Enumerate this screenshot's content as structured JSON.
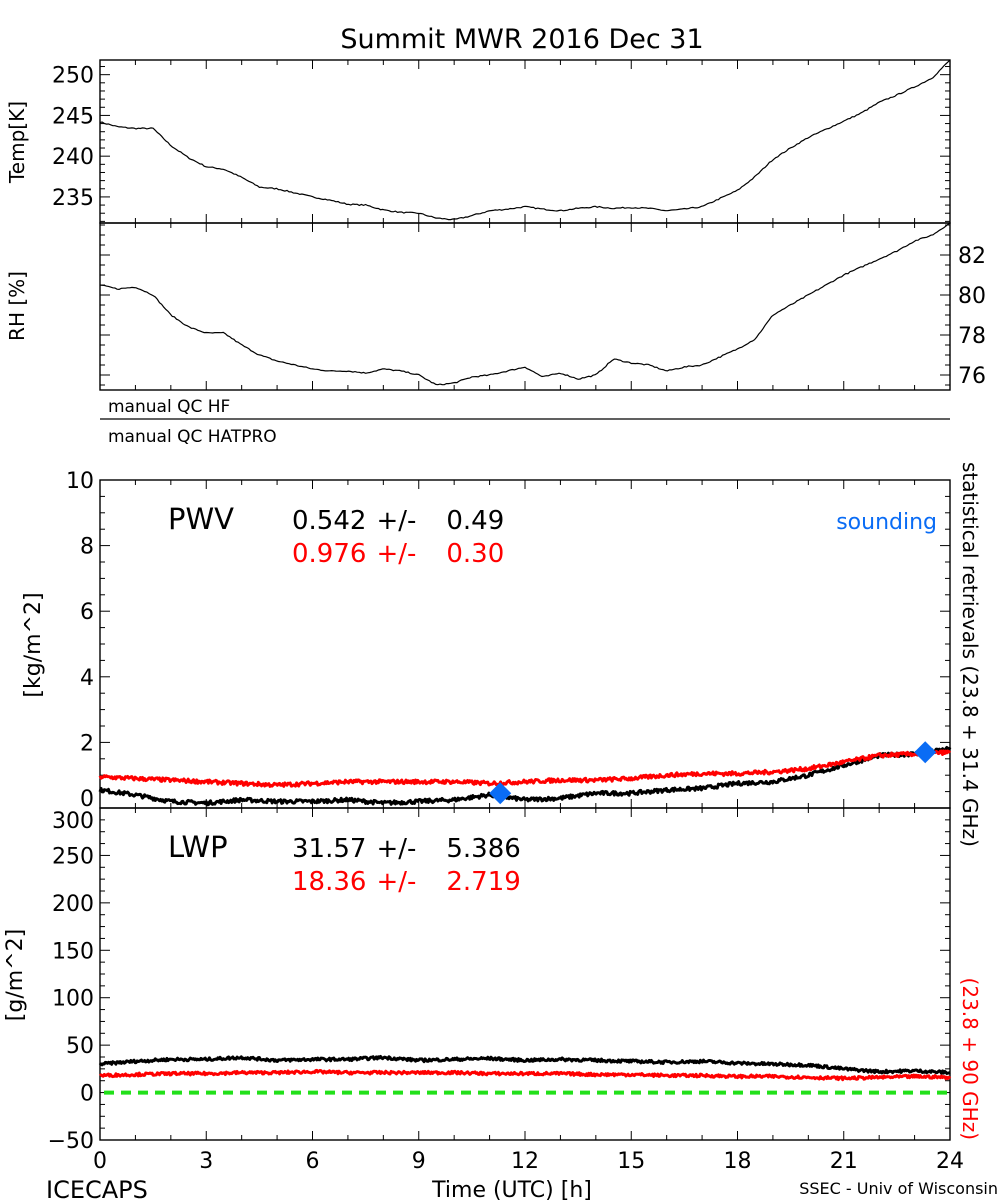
{
  "title": "Summit MWR 2016 Dec 31",
  "footer": {
    "left": "ICECAPS",
    "center": "Time (UTC) [h]",
    "right": "SSEC - Univ of Wisconsin"
  },
  "colors": {
    "primary": "#000000",
    "secondary": "#ff0000",
    "sounding": "#0a6cf5",
    "zero_line": "#22e01a"
  },
  "qc": {
    "hf_label": "manual QC HF",
    "hatpro_label": "manual QC HATPRO"
  },
  "right_label": {
    "black_part": "statistical retrievals (23.8 + 31.4 GHz)",
    "red_part": "(23.8 + 90 GHz)"
  },
  "chart_data": [
    {
      "name": "temperature",
      "type": "line",
      "ylabel": "Temp[K]",
      "ylim": [
        231.8,
        251.8
      ],
      "yticks": [
        "235",
        "240",
        "245",
        "250"
      ],
      "ytick_values": [
        235,
        240,
        245,
        250
      ],
      "xlim": [
        0,
        24
      ],
      "x": [
        0,
        0.5,
        1,
        1.5,
        2,
        2.5,
        3,
        3.5,
        4,
        4.5,
        5,
        5.5,
        6,
        6.5,
        7,
        7.5,
        8,
        8.5,
        9,
        9.5,
        10,
        10.5,
        11,
        11.5,
        12,
        12.5,
        13,
        13.5,
        14,
        14.5,
        15,
        15.5,
        16,
        16.5,
        17,
        17.5,
        18,
        18.5,
        19,
        19.5,
        20,
        20.5,
        21,
        21.5,
        22,
        22.5,
        23,
        23.5,
        24
      ],
      "y": [
        244.2,
        243.6,
        243.4,
        243.4,
        241.3,
        239.8,
        238.7,
        238.4,
        237.4,
        236.2,
        236.0,
        235.5,
        235.0,
        234.6,
        234.1,
        234.0,
        233.4,
        233.1,
        233.0,
        232.4,
        232.2,
        232.7,
        233.3,
        233.5,
        233.8,
        233.5,
        233.3,
        233.6,
        233.8,
        233.6,
        233.7,
        233.6,
        233.3,
        233.5,
        233.8,
        234.8,
        235.8,
        237.5,
        239.6,
        241.0,
        242.3,
        243.3,
        244.3,
        245.3,
        246.6,
        247.5,
        248.5,
        249.6,
        251.8
      ]
    },
    {
      "name": "relative_humidity",
      "type": "line",
      "ylabel": "RH [%]",
      "ylim": [
        75.25,
        83.6
      ],
      "yticks": [
        "76",
        "78",
        "80",
        "82"
      ],
      "ytick_values": [
        76,
        78,
        80,
        82
      ],
      "xlim": [
        0,
        24
      ],
      "x": [
        0,
        0.5,
        1,
        1.5,
        2,
        2.5,
        3,
        3.5,
        4,
        4.5,
        5,
        5.5,
        6,
        6.5,
        7,
        7.5,
        8,
        8.5,
        9,
        9.5,
        10,
        10.5,
        11,
        11.5,
        12,
        12.5,
        13,
        13.5,
        14,
        14.5,
        15,
        15.5,
        16,
        16.5,
        17,
        17.5,
        18,
        18.5,
        19,
        19.5,
        20,
        20.5,
        21,
        21.5,
        22,
        22.5,
        23,
        23.5,
        24
      ],
      "y": [
        80.5,
        80.3,
        80.4,
        80.0,
        79.0,
        78.4,
        78.1,
        78.1,
        77.5,
        77.0,
        76.7,
        76.5,
        76.3,
        76.2,
        76.2,
        76.1,
        76.3,
        76.2,
        76.0,
        75.5,
        75.6,
        75.9,
        76.0,
        76.2,
        76.4,
        75.9,
        76.1,
        75.8,
        76.0,
        76.8,
        76.6,
        76.5,
        76.2,
        76.4,
        76.5,
        76.9,
        77.3,
        77.8,
        79.0,
        79.5,
        80.0,
        80.5,
        81.0,
        81.4,
        81.8,
        82.2,
        82.7,
        83.0,
        83.6
      ]
    },
    {
      "name": "pwv",
      "type": "line",
      "ylabel": "[kg/m^2]",
      "panel_label": "PWV",
      "stats": [
        {
          "mean": "0.542",
          "pm": "+/-",
          "std": "0.49",
          "color": "#000000"
        },
        {
          "mean": "0.976",
          "pm": "+/-",
          "std": "0.30",
          "color": "#ff0000"
        }
      ],
      "legend": "sounding",
      "ylim": [
        0,
        10
      ],
      "yticks": [
        "0",
        "2",
        "4",
        "6",
        "8",
        "10"
      ],
      "ytick_values": [
        0,
        2,
        4,
        6,
        8,
        10
      ],
      "xlim": [
        0,
        24
      ],
      "x": [
        0,
        1,
        2,
        3,
        4,
        5,
        6,
        7,
        8,
        9,
        10,
        11,
        12,
        13,
        14,
        15,
        16,
        17,
        18,
        19,
        20,
        21,
        22,
        23,
        24
      ],
      "series": [
        {
          "name": "statistical retrievals (23.8 + 31.4 GHz)",
          "color": "#000000",
          "values": [
            0.55,
            0.4,
            0.2,
            0.15,
            0.25,
            0.2,
            0.2,
            0.25,
            0.15,
            0.2,
            0.25,
            0.4,
            0.25,
            0.3,
            0.45,
            0.45,
            0.55,
            0.6,
            0.75,
            0.8,
            1.0,
            1.3,
            1.6,
            1.65,
            1.8
          ]
        },
        {
          "name": "(23.8 + 90 GHz)",
          "color": "#ff0000",
          "values": [
            0.95,
            0.9,
            0.85,
            0.8,
            0.75,
            0.7,
            0.75,
            0.8,
            0.8,
            0.8,
            0.8,
            0.75,
            0.8,
            0.85,
            0.85,
            0.9,
            1.0,
            1.05,
            1.05,
            1.1,
            1.2,
            1.4,
            1.6,
            1.65,
            1.7
          ]
        }
      ],
      "sounding_points": [
        {
          "x": 11.3,
          "y": 0.45
        },
        {
          "x": 23.3,
          "y": 1.7
        }
      ]
    },
    {
      "name": "lwp",
      "type": "line",
      "ylabel": "[g/m^2]",
      "panel_label": "LWP",
      "stats": [
        {
          "mean": "31.57",
          "pm": "+/-",
          "std": "5.386",
          "color": "#000000"
        },
        {
          "mean": "18.36",
          "pm": "+/-",
          "std": "2.719",
          "color": "#ff0000"
        }
      ],
      "ylim": [
        -50,
        300
      ],
      "yticks": [
        "-50",
        "0",
        "50",
        "100",
        "150",
        "200",
        "250",
        "300"
      ],
      "ytick_values": [
        -50,
        0,
        50,
        100,
        150,
        200,
        250,
        300
      ],
      "xlim": [
        0,
        24
      ],
      "xlabel": "Time (UTC) [h]",
      "xticks": [
        "0",
        "3",
        "6",
        "9",
        "12",
        "15",
        "18",
        "21",
        "24"
      ],
      "xtick_values": [
        0,
        3,
        6,
        9,
        12,
        15,
        18,
        21,
        24
      ],
      "x": [
        0,
        1,
        2,
        3,
        4,
        5,
        6,
        7,
        8,
        9,
        10,
        11,
        12,
        13,
        14,
        15,
        16,
        17,
        18,
        19,
        20,
        21,
        22,
        23,
        24
      ],
      "series": [
        {
          "name": "statistical retrievals (23.8 + 31.4 GHz)",
          "color": "#000000",
          "values": [
            30,
            33,
            35,
            35,
            37,
            34,
            35,
            35,
            37,
            34,
            35,
            36,
            34,
            35,
            34,
            33,
            32,
            33,
            31,
            30,
            29,
            25,
            22,
            23,
            21
          ]
        },
        {
          "name": "(23.8 + 90 GHz)",
          "color": "#ff0000",
          "values": [
            18,
            19,
            20,
            20,
            21,
            21,
            22,
            21,
            21,
            21,
            21,
            20,
            20,
            20,
            19,
            19,
            18,
            18,
            17,
            17,
            16,
            15,
            16,
            17,
            16
          ]
        }
      ],
      "reference_line": {
        "y": 0,
        "style": "dashed"
      }
    }
  ]
}
